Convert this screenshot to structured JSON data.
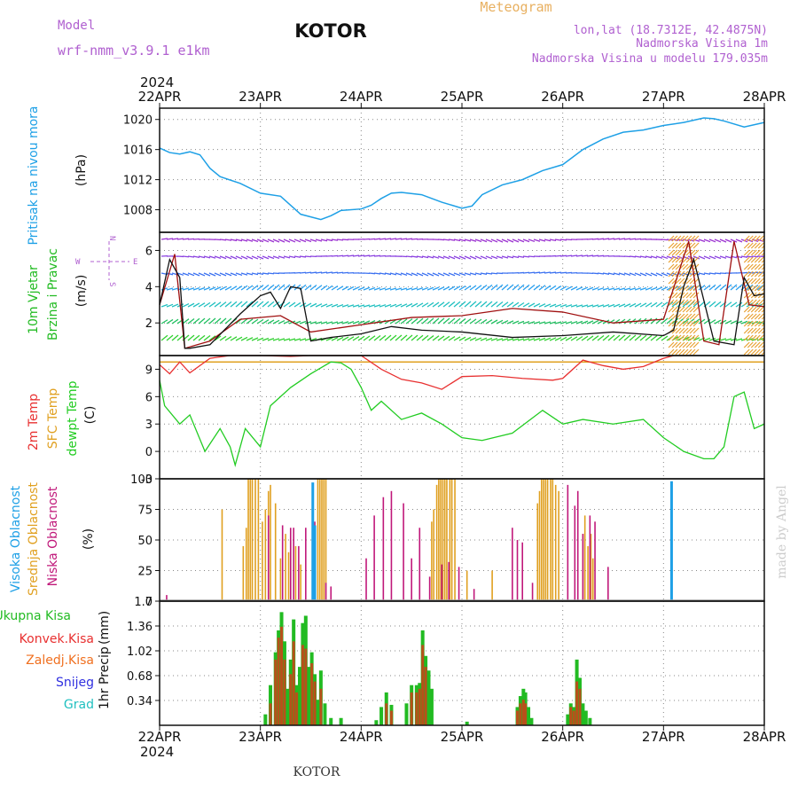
{
  "header": {
    "model_label": "Model",
    "model_name": "wrf-nmm_v3.9.1 e1km",
    "station_title": "KOTOR",
    "meteogram_label": "Meteogram",
    "lonlat": "lon,lat (18.7312E, 42.4875N)",
    "elevation": "Nadmorska Visina 1m",
    "model_elevation": "Nadmorska Visina u modelu 179.035m"
  },
  "footer": {
    "station": "KOTOR",
    "credit": "made by Angel"
  },
  "colors": {
    "pressure": "#1ea0e6",
    "wind_label": "#22bb22",
    "temp2m": "#e83030",
    "sfc": "#e0a020",
    "dewpt": "#22cc22",
    "high_cloud": "#1ea0e6",
    "mid_cloud": "#e0a020",
    "low_cloud": "#c0187a",
    "total_precip": "#22bb22",
    "conv_precip": "#e83030",
    "frozen": "#f07020",
    "snow": "#3030e0",
    "grad": "#20c0c0",
    "purple": "#b060d0"
  },
  "time_axis": {
    "year": "2024",
    "dates": [
      "22APR",
      "23APR",
      "24APR",
      "25APR",
      "26APR",
      "27APR",
      "28APR"
    ]
  },
  "chart_data": [
    {
      "type": "line",
      "id": "pressure",
      "ylabel": "Pritisak na nivou mora",
      "unit": "(hPa)",
      "ylim": [
        1005,
        1021.5
      ],
      "yticks": [
        1008,
        1012,
        1016,
        1020
      ],
      "grid": true,
      "x_days": [
        0,
        0.1,
        0.2,
        0.3,
        0.4,
        0.5,
        0.6,
        0.8,
        1.0,
        1.2,
        1.4,
        1.6,
        1.7,
        1.8,
        2.0,
        2.1,
        2.2,
        2.3,
        2.4,
        2.6,
        2.8,
        3.0,
        3.1,
        3.2,
        3.4,
        3.6,
        3.8,
        4.0,
        4.2,
        4.4,
        4.6,
        4.8,
        5.0,
        5.2,
        5.4,
        5.5,
        5.6,
        5.8,
        6.0
      ],
      "values": [
        1016.2,
        1015.6,
        1015.4,
        1015.7,
        1015.3,
        1013.5,
        1012.4,
        1011.5,
        1010.2,
        1009.8,
        1007.4,
        1006.7,
        1007.2,
        1007.9,
        1008.1,
        1008.6,
        1009.5,
        1010.2,
        1010.3,
        1010.0,
        1009.0,
        1008.2,
        1008.5,
        1010.0,
        1011.3,
        1012.0,
        1013.2,
        1014.0,
        1016.0,
        1017.4,
        1018.3,
        1018.6,
        1019.2,
        1019.6,
        1020.2,
        1020.1,
        1019.8,
        1019.0,
        1019.6
      ]
    },
    {
      "type": "line",
      "id": "wind",
      "ylabel_lines": [
        "10m Vjetar",
        "Brzina i Pravac"
      ],
      "unit": "(m/s)",
      "compass": [
        "W",
        "E",
        "N",
        "S"
      ],
      "ylim": [
        0.2,
        7
      ],
      "yticks": [
        2,
        4,
        6
      ],
      "grid": true,
      "series": [
        {
          "x_days": [
            0,
            0.1,
            0.2,
            0.25,
            0.3,
            0.5,
            0.8,
            1.0,
            1.1,
            1.2,
            1.3,
            1.4,
            1.5,
            1.7,
            2.0,
            2.3,
            2.6,
            3.0,
            3.5,
            4.0,
            4.5,
            5.0,
            5.1,
            5.2,
            5.3,
            5.5,
            5.7,
            5.8,
            5.9,
            6.0
          ],
          "values": [
            3.0,
            5.5,
            4.5,
            0.6,
            0.6,
            0.8,
            2.5,
            3.5,
            3.7,
            2.8,
            4.0,
            3.9,
            1.0,
            1.2,
            1.4,
            1.8,
            1.6,
            1.5,
            1.2,
            1.3,
            1.5,
            1.3,
            1.6,
            4.0,
            5.5,
            1.0,
            0.8,
            4.5,
            3.5,
            3.6
          ]
        },
        {
          "x_days": [
            0,
            0.15,
            0.25,
            0.5,
            0.8,
            1.2,
            1.5,
            2.0,
            2.5,
            3.0,
            3.5,
            4.0,
            4.5,
            5.0,
            5.25,
            5.4,
            5.55,
            5.7,
            5.85,
            6.0
          ],
          "values": [
            3.0,
            5.8,
            0.6,
            1.0,
            2.2,
            2.4,
            1.5,
            1.9,
            2.3,
            2.4,
            2.8,
            2.6,
            2.0,
            2.2,
            6.5,
            1.0,
            0.8,
            6.5,
            3.0,
            2.9
          ]
        }
      ]
    },
    {
      "type": "line",
      "id": "temperature",
      "ylabel_lines": [
        "2m Temp",
        "SFC Temp",
        "dewpt Temp"
      ],
      "unit": "(C)",
      "ylim": [
        -3,
        10.5
      ],
      "yticks": [
        -3,
        0,
        3,
        6,
        9
      ],
      "grid": true,
      "sfc_value": 9.8,
      "series": [
        {
          "name": "2m Temp",
          "x_days": [
            0,
            0.1,
            0.2,
            0.3,
            0.5,
            0.7,
            1.0,
            1.3,
            1.5,
            1.7,
            2.0,
            2.2,
            2.4,
            2.6,
            2.8,
            3.0,
            3.3,
            3.6,
            3.9,
            4.0,
            4.2,
            4.4,
            4.6,
            4.8,
            5.0,
            5.1
          ],
          "values": [
            9.5,
            8.5,
            9.8,
            8.6,
            10.2,
            10.5,
            10.6,
            10.4,
            10.5,
            10.6,
            10.5,
            9.0,
            7.9,
            7.5,
            6.8,
            8.2,
            8.3,
            8.0,
            7.8,
            8.0,
            10.0,
            9.4,
            9.0,
            9.3,
            10.2,
            10.5
          ]
        },
        {
          "name": "dewpt Temp",
          "x_days": [
            0,
            0.05,
            0.2,
            0.3,
            0.45,
            0.6,
            0.7,
            0.75,
            0.85,
            1.0,
            1.1,
            1.3,
            1.5,
            1.7,
            1.8,
            1.9,
            2.0,
            2.1,
            2.2,
            2.4,
            2.6,
            2.8,
            3.0,
            3.2,
            3.5,
            3.8,
            4.0,
            4.2,
            4.5,
            4.8,
            5.0,
            5.2,
            5.4,
            5.5,
            5.6,
            5.7,
            5.8,
            5.9,
            6.0
          ],
          "values": [
            7.8,
            5.0,
            3.0,
            4.0,
            0.0,
            2.5,
            0.5,
            -1.5,
            2.5,
            0.5,
            5.0,
            7.0,
            8.5,
            9.8,
            9.7,
            9.0,
            7.0,
            4.5,
            5.5,
            3.5,
            4.2,
            3.0,
            1.5,
            1.2,
            2.0,
            4.5,
            3.0,
            3.5,
            3.0,
            3.5,
            1.5,
            0.0,
            -0.8,
            -0.8,
            0.5,
            6.0,
            6.5,
            2.5,
            3.0
          ]
        }
      ]
    },
    {
      "type": "bar",
      "id": "cloud",
      "ylabel_lines": [
        "Visoka Oblacnost",
        "Srednja Oblacnost",
        "Niska Oblacnost"
      ],
      "unit": "(%)",
      "ylim": [
        0,
        100
      ],
      "yticks": [
        0,
        25,
        50,
        75,
        100
      ],
      "grid": true,
      "series": [
        {
          "name": "Srednja Oblacnost",
          "x_days": [
            0.62,
            0.83,
            0.86,
            0.88,
            0.9,
            0.92,
            0.95,
            0.98,
            1.02,
            1.05,
            1.08,
            1.1,
            1.15,
            1.2,
            1.25,
            1.28,
            1.3,
            1.35,
            1.4,
            1.52,
            1.57,
            1.59,
            1.61,
            1.63,
            1.65,
            2.7,
            2.72,
            2.75,
            2.77,
            2.79,
            2.81,
            2.83,
            2.85,
            2.88,
            2.9,
            2.93,
            3.05,
            3.3,
            3.75,
            3.77,
            3.79,
            3.81,
            3.83,
            3.85,
            3.88,
            3.9,
            3.93,
            3.96,
            4.2,
            4.22,
            4.25,
            4.28,
            4.3
          ],
          "values": [
            75,
            45,
            60,
            100,
            100,
            100,
            100,
            100,
            65,
            75,
            90,
            95,
            80,
            35,
            55,
            40,
            50,
            45,
            30,
            90,
            100,
            100,
            100,
            100,
            100,
            65,
            75,
            95,
            100,
            100,
            100,
            100,
            100,
            100,
            100,
            100,
            25,
            25,
            80,
            90,
            100,
            100,
            100,
            100,
            100,
            100,
            95,
            90,
            55,
            70,
            45,
            55,
            35
          ]
        },
        {
          "name": "Niska Oblacnost",
          "x_days": [
            0.07,
            1.08,
            1.22,
            1.3,
            1.33,
            1.38,
            1.45,
            1.54,
            1.65,
            1.7,
            2.05,
            2.13,
            2.22,
            2.3,
            2.42,
            2.5,
            2.58,
            2.68,
            2.8,
            2.87,
            2.97,
            3.12,
            3.5,
            3.55,
            3.6,
            3.7,
            4.05,
            4.12,
            4.15,
            4.2,
            4.27,
            4.32,
            4.45
          ],
          "values": [
            5,
            70,
            62,
            60,
            60,
            45,
            60,
            65,
            15,
            12,
            35,
            70,
            85,
            90,
            80,
            35,
            60,
            20,
            30,
            32,
            28,
            10,
            60,
            50,
            48,
            15,
            95,
            78,
            90,
            55,
            70,
            65,
            28
          ]
        },
        {
          "name": "Visoka Oblacnost",
          "x_days": [
            1.52,
            1.54,
            5.08
          ],
          "values": [
            97,
            62,
            98
          ]
        }
      ]
    },
    {
      "type": "bar",
      "id": "precip",
      "ylabel": "1hr Precip",
      "unit": "(mm)",
      "legend": [
        "Ukupna Kisa",
        "Konvek.Kisa",
        "Zaledj.Kisa",
        "Snijeg",
        "Grad"
      ],
      "ylim": [
        0,
        1.7
      ],
      "yticks": [
        0.34,
        0.68,
        1.02,
        1.36,
        1.7
      ],
      "grid": true,
      "series": [
        {
          "name": "Ukupna Kisa",
          "x_days": [
            1.05,
            1.1,
            1.15,
            1.18,
            1.21,
            1.24,
            1.27,
            1.3,
            1.33,
            1.36,
            1.39,
            1.42,
            1.45,
            1.48,
            1.51,
            1.54,
            1.57,
            1.6,
            1.64,
            1.7,
            1.8,
            2.15,
            2.2,
            2.25,
            2.3,
            2.45,
            2.5,
            2.55,
            2.58,
            2.61,
            2.64,
            2.67,
            2.7,
            3.0,
            3.05,
            3.55,
            3.58,
            3.61,
            3.63,
            3.66,
            3.69,
            4.05,
            4.08,
            4.11,
            4.14,
            4.17,
            4.2,
            4.23,
            4.27
          ],
          "values": [
            0.15,
            0.55,
            1.0,
            1.3,
            1.55,
            1.15,
            0.5,
            0.9,
            1.45,
            0.55,
            0.8,
            1.4,
            1.5,
            0.8,
            1.0,
            0.7,
            0.35,
            0.75,
            0.3,
            0.1,
            0.1,
            0.07,
            0.25,
            0.45,
            0.28,
            0.3,
            0.55,
            0.55,
            0.58,
            1.3,
            0.95,
            0.75,
            0.5,
            0.01,
            0.05,
            0.25,
            0.4,
            0.5,
            0.45,
            0.25,
            0.1,
            0.15,
            0.3,
            0.25,
            0.9,
            0.65,
            0.3,
            0.2,
            0.1
          ]
        },
        {
          "name": "Konvek.Kisa",
          "x_days": [
            1.1,
            1.15,
            1.18,
            1.21,
            1.24,
            1.3,
            1.33,
            1.36,
            1.42,
            1.45,
            1.51,
            1.54,
            1.6,
            2.25,
            2.3,
            2.5,
            2.55,
            2.58,
            2.61,
            2.64,
            3.55,
            3.58,
            3.61,
            3.63,
            4.08,
            4.11,
            4.14,
            4.17
          ],
          "values": [
            0.3,
            0.9,
            1.2,
            1.35,
            0.9,
            0.7,
            1.15,
            0.45,
            1.1,
            1.05,
            0.85,
            0.6,
            0.5,
            0.3,
            0.2,
            0.45,
            0.45,
            0.5,
            1.1,
            0.8,
            0.2,
            0.3,
            0.35,
            0.3,
            0.25,
            0.2,
            0.6,
            0.5
          ]
        }
      ]
    }
  ]
}
